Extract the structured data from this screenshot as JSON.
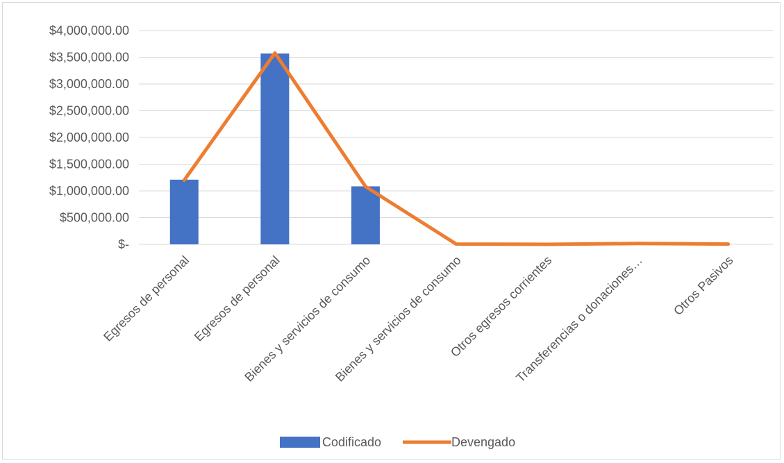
{
  "chart_data": {
    "type": "bar",
    "categories": [
      "Egresos de personal",
      "Egresos de personal",
      "Bienes y servicios de consumo",
      "Bienes y servicios de consumo",
      "Otros egresos corrientes",
      "Transferencias o donaciones…",
      "Otros Pasivos"
    ],
    "series": [
      {
        "name": "Codificado",
        "type": "bar",
        "color": "#4472c4",
        "values": [
          1210000,
          3570000,
          1085000,
          0,
          0,
          0,
          0
        ]
      },
      {
        "name": "Devengado",
        "type": "line",
        "color": "#ed7d31",
        "values": [
          1200000,
          3580000,
          1080000,
          5000,
          0,
          15000,
          5000
        ]
      }
    ],
    "ylim": [
      0,
      4000000
    ],
    "yticks": [
      0,
      500000,
      1000000,
      1500000,
      2000000,
      2500000,
      3000000,
      3500000,
      4000000
    ],
    "ytick_labels": [
      "$-",
      "$500,000.00",
      "$1,000,000.00",
      "$1,500,000.00",
      "$2,000,000.00",
      "$2,500,000.00",
      "$3,000,000.00",
      "$3,500,000.00",
      "$4,000,000.00"
    ],
    "grid": true,
    "legend": "bottom"
  }
}
